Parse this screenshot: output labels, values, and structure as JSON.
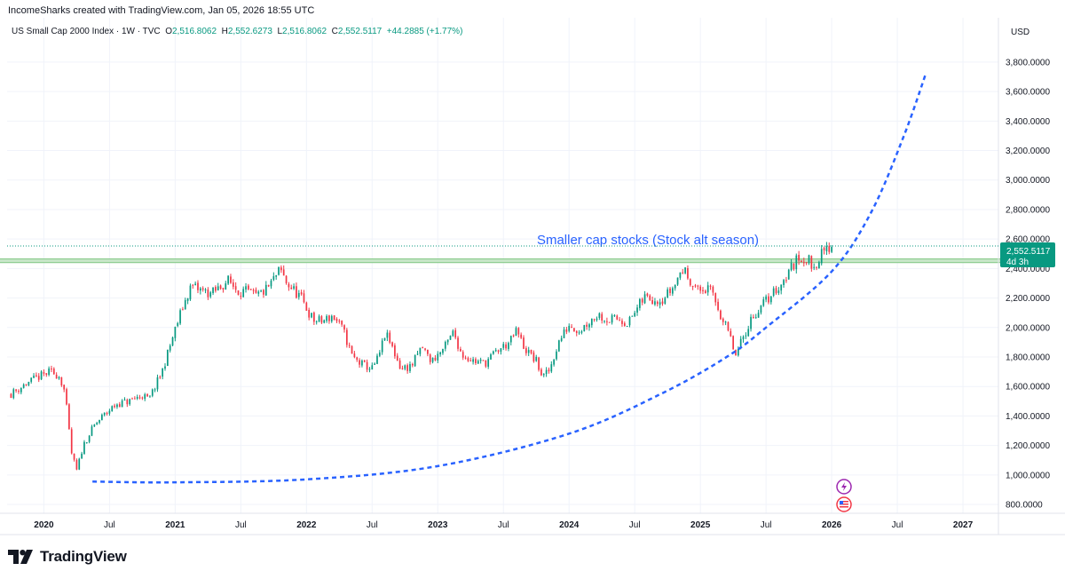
{
  "header": {
    "creator_line": "IncomeSharks created with TradingView.com, Jan 05, 2026 18:55 UTC",
    "symbol": "US Small Cap 2000 Index · 1W · TVC",
    "o_label": "O",
    "o_value": "2,516.8062",
    "h_label": "H",
    "h_value": "2,552.6273",
    "l_label": "L",
    "l_value": "2,516.8062",
    "c_label": "C",
    "c_value": "2,552.5117",
    "change": "+44.2885 (+1.77%)",
    "currency": "USD"
  },
  "price_badge": {
    "price": "2,552.5117",
    "countdown": "4d 3h"
  },
  "brand": {
    "name": "TradingView"
  },
  "colors": {
    "up": "#089981",
    "down": "#f23645",
    "curve": "#2962ff",
    "annotation": "#2962ff",
    "zone_fill": "#c8e6c9",
    "zone_stroke": "#81c784",
    "badge": "#089981"
  },
  "chart_data": {
    "type": "candlestick",
    "title": "US Small Cap 2000 Index",
    "timeframe": "1W",
    "annotation": "Smaller cap stocks (Stock alt season)",
    "y_ticks": [
      800,
      1000,
      1200,
      1400,
      1600,
      1800,
      2000,
      2200,
      2400,
      2600,
      2800,
      3000,
      3200,
      3400,
      3600,
      3800
    ],
    "y_tick_labels": [
      "800.0000",
      "1,000.0000",
      "1,200.0000",
      "1,400.0000",
      "1,600.0000",
      "1,800.0000",
      "2,000.0000",
      "2,200.0000",
      "2,400.0000",
      "2,600.0000",
      "2,800.0000",
      "3,000.0000",
      "3,200.0000",
      "3,400.0000",
      "3,600.0000",
      "3,800.0000"
    ],
    "x_ticks": [
      2020.0,
      2020.5,
      2021.0,
      2021.5,
      2022.0,
      2022.5,
      2023.0,
      2023.5,
      2024.0,
      2024.5,
      2025.0,
      2025.5,
      2026.0,
      2026.5,
      2027.0
    ],
    "x_tick_labels": [
      "2020",
      "Jul",
      "2021",
      "Jul",
      "2022",
      "Jul",
      "2023",
      "Jul",
      "2024",
      "Jul",
      "2025",
      "Jul",
      "2026",
      "Jul",
      "2027"
    ],
    "ylim": [
      740,
      3950
    ],
    "xlim": [
      2019.72,
      2027.27
    ],
    "last_close": 2552.5117,
    "resistance_zone": {
      "from": 2019.6,
      "low": 2440,
      "high": 2465
    },
    "curve_points": [
      [
        2020.37,
        955
      ],
      [
        2021.0,
        950
      ],
      [
        2022.0,
        970
      ],
      [
        2023.0,
        1060
      ],
      [
        2024.0,
        1280
      ],
      [
        2024.7,
        1550
      ],
      [
        2025.2,
        1800
      ],
      [
        2025.5,
        2000
      ],
      [
        2026.0,
        2380
      ],
      [
        2026.3,
        2780
      ],
      [
        2026.55,
        3300
      ],
      [
        2026.72,
        3730
      ]
    ],
    "price_path": [
      [
        2019.75,
        1550
      ],
      [
        2019.85,
        1610
      ],
      [
        2019.95,
        1660
      ],
      [
        2020.05,
        1700
      ],
      [
        2020.12,
        1670
      ],
      [
        2020.16,
        1560
      ],
      [
        2020.21,
        1150
      ],
      [
        2020.25,
        1030
      ],
      [
        2020.3,
        1200
      ],
      [
        2020.38,
        1330
      ],
      [
        2020.45,
        1400
      ],
      [
        2020.55,
        1480
      ],
      [
        2020.65,
        1500
      ],
      [
        2020.75,
        1540
      ],
      [
        2020.8,
        1510
      ],
      [
        2020.9,
        1700
      ],
      [
        2020.98,
        1930
      ],
      [
        2021.05,
        2120
      ],
      [
        2021.12,
        2280
      ],
      [
        2021.2,
        2250
      ],
      [
        2021.28,
        2230
      ],
      [
        2021.35,
        2280
      ],
      [
        2021.4,
        2320
      ],
      [
        2021.48,
        2250
      ],
      [
        2021.55,
        2240
      ],
      [
        2021.62,
        2210
      ],
      [
        2021.7,
        2260
      ],
      [
        2021.8,
        2390
      ],
      [
        2021.85,
        2300
      ],
      [
        2021.95,
        2210
      ],
      [
        2022.05,
        2050
      ],
      [
        2022.12,
        2040
      ],
      [
        2022.2,
        2080
      ],
      [
        2022.28,
        1980
      ],
      [
        2022.35,
        1800
      ],
      [
        2022.42,
        1750
      ],
      [
        2022.5,
        1720
      ],
      [
        2022.55,
        1800
      ],
      [
        2022.6,
        1960
      ],
      [
        2022.65,
        1870
      ],
      [
        2022.72,
        1720
      ],
      [
        2022.8,
        1740
      ],
      [
        2022.88,
        1870
      ],
      [
        2022.95,
        1770
      ],
      [
        2023.05,
        1860
      ],
      [
        2023.12,
        1970
      ],
      [
        2023.18,
        1820
      ],
      [
        2023.28,
        1770
      ],
      [
        2023.36,
        1760
      ],
      [
        2023.45,
        1840
      ],
      [
        2023.55,
        1900
      ],
      [
        2023.6,
        1980
      ],
      [
        2023.66,
        1860
      ],
      [
        2023.75,
        1770
      ],
      [
        2023.8,
        1660
      ],
      [
        2023.85,
        1710
      ],
      [
        2023.92,
        1900
      ],
      [
        2024.0,
        2020
      ],
      [
        2024.08,
        1980
      ],
      [
        2024.15,
        2040
      ],
      [
        2024.22,
        2090
      ],
      [
        2024.3,
        2050
      ],
      [
        2024.38,
        2060
      ],
      [
        2024.45,
        2030
      ],
      [
        2024.52,
        2130
      ],
      [
        2024.58,
        2210
      ],
      [
        2024.66,
        2190
      ],
      [
        2024.72,
        2200
      ],
      [
        2024.8,
        2280
      ],
      [
        2024.86,
        2400
      ],
      [
        2024.92,
        2330
      ],
      [
        2024.98,
        2250
      ],
      [
        2025.05,
        2260
      ],
      [
        2025.1,
        2220
      ],
      [
        2025.16,
        2070
      ],
      [
        2025.22,
        1950
      ],
      [
        2025.27,
        1800
      ],
      [
        2025.32,
        1920
      ],
      [
        2025.38,
        2050
      ],
      [
        2025.46,
        2140
      ],
      [
        2025.55,
        2230
      ],
      [
        2025.62,
        2300
      ],
      [
        2025.7,
        2420
      ],
      [
        2025.76,
        2480
      ],
      [
        2025.82,
        2460
      ],
      [
        2025.86,
        2400
      ],
      [
        2025.9,
        2470
      ],
      [
        2025.95,
        2520
      ],
      [
        2026.0,
        2552
      ]
    ]
  }
}
